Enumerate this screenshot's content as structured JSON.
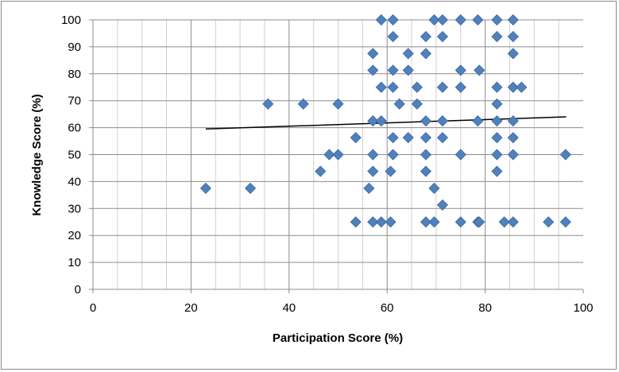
{
  "chart_data": {
    "type": "scatter",
    "xlabel": "Participation Score (%)",
    "ylabel": "Knowledge Score (%)",
    "xlim": [
      0,
      100
    ],
    "ylim": [
      0,
      100
    ],
    "x_ticks": [
      "0",
      "20",
      "40",
      "60",
      "80",
      "100"
    ],
    "y_ticks": [
      "0",
      "10",
      "20",
      "30",
      "40",
      "50",
      "60",
      "70",
      "80",
      "90",
      "100"
    ],
    "grid": true,
    "legend": "none",
    "marker_color": "#4F81BD",
    "trendline": {
      "type": "linear",
      "x": [
        23,
        96.5
      ],
      "y": [
        59.5,
        64
      ]
    },
    "points": [
      [
        58.8,
        100
      ],
      [
        61.2,
        100
      ],
      [
        69.6,
        100
      ],
      [
        71.3,
        100
      ],
      [
        75,
        100
      ],
      [
        78.5,
        100
      ],
      [
        82.4,
        100
      ],
      [
        85.7,
        100
      ],
      [
        61.2,
        93.8
      ],
      [
        67.9,
        93.8
      ],
      [
        71.3,
        93.8
      ],
      [
        82.4,
        93.8
      ],
      [
        85.7,
        93.8
      ],
      [
        57.1,
        87.5
      ],
      [
        64.3,
        87.5
      ],
      [
        67.9,
        87.5
      ],
      [
        85.7,
        87.5
      ],
      [
        57.1,
        81.3
      ],
      [
        61.2,
        81.3
      ],
      [
        64.3,
        81.3
      ],
      [
        75,
        81.3
      ],
      [
        78.8,
        81.3
      ],
      [
        58.8,
        75
      ],
      [
        61.2,
        75
      ],
      [
        66.1,
        75
      ],
      [
        71.3,
        75
      ],
      [
        75,
        75
      ],
      [
        82.4,
        75
      ],
      [
        85.7,
        75
      ],
      [
        87.4,
        75
      ],
      [
        35.7,
        68.8
      ],
      [
        42.9,
        68.8
      ],
      [
        50,
        68.8
      ],
      [
        62.5,
        68.8
      ],
      [
        66.1,
        68.8
      ],
      [
        82.4,
        68.8
      ],
      [
        57.1,
        62.5
      ],
      [
        58.8,
        62.5
      ],
      [
        67.9,
        62.5
      ],
      [
        71.3,
        62.5
      ],
      [
        78.5,
        62.5
      ],
      [
        82.4,
        62.5
      ],
      [
        85.7,
        62.5
      ],
      [
        53.6,
        56.3
      ],
      [
        61.2,
        56.3
      ],
      [
        64.3,
        56.3
      ],
      [
        67.9,
        56.3
      ],
      [
        71.3,
        56.3
      ],
      [
        82.4,
        56.3
      ],
      [
        85.7,
        56.3
      ],
      [
        48.2,
        50
      ],
      [
        50,
        50
      ],
      [
        57.1,
        50
      ],
      [
        61.2,
        50
      ],
      [
        67.9,
        50
      ],
      [
        75,
        50
      ],
      [
        82.4,
        50
      ],
      [
        85.7,
        50
      ],
      [
        96.4,
        50
      ],
      [
        46.4,
        43.8
      ],
      [
        57.1,
        43.8
      ],
      [
        60.7,
        43.8
      ],
      [
        67.9,
        43.8
      ],
      [
        82.4,
        43.8
      ],
      [
        23,
        37.5
      ],
      [
        32.1,
        37.5
      ],
      [
        56.3,
        37.5
      ],
      [
        69.6,
        37.5
      ],
      [
        71.3,
        31.3
      ],
      [
        53.6,
        25
      ],
      [
        57.1,
        25
      ],
      [
        58.8,
        25
      ],
      [
        60.7,
        25
      ],
      [
        67.9,
        25
      ],
      [
        69.6,
        25
      ],
      [
        75,
        25
      ],
      [
        78.5,
        25
      ],
      [
        78.8,
        25
      ],
      [
        83.9,
        25
      ],
      [
        85.7,
        25
      ],
      [
        92.9,
        25
      ],
      [
        96.4,
        25
      ]
    ]
  }
}
